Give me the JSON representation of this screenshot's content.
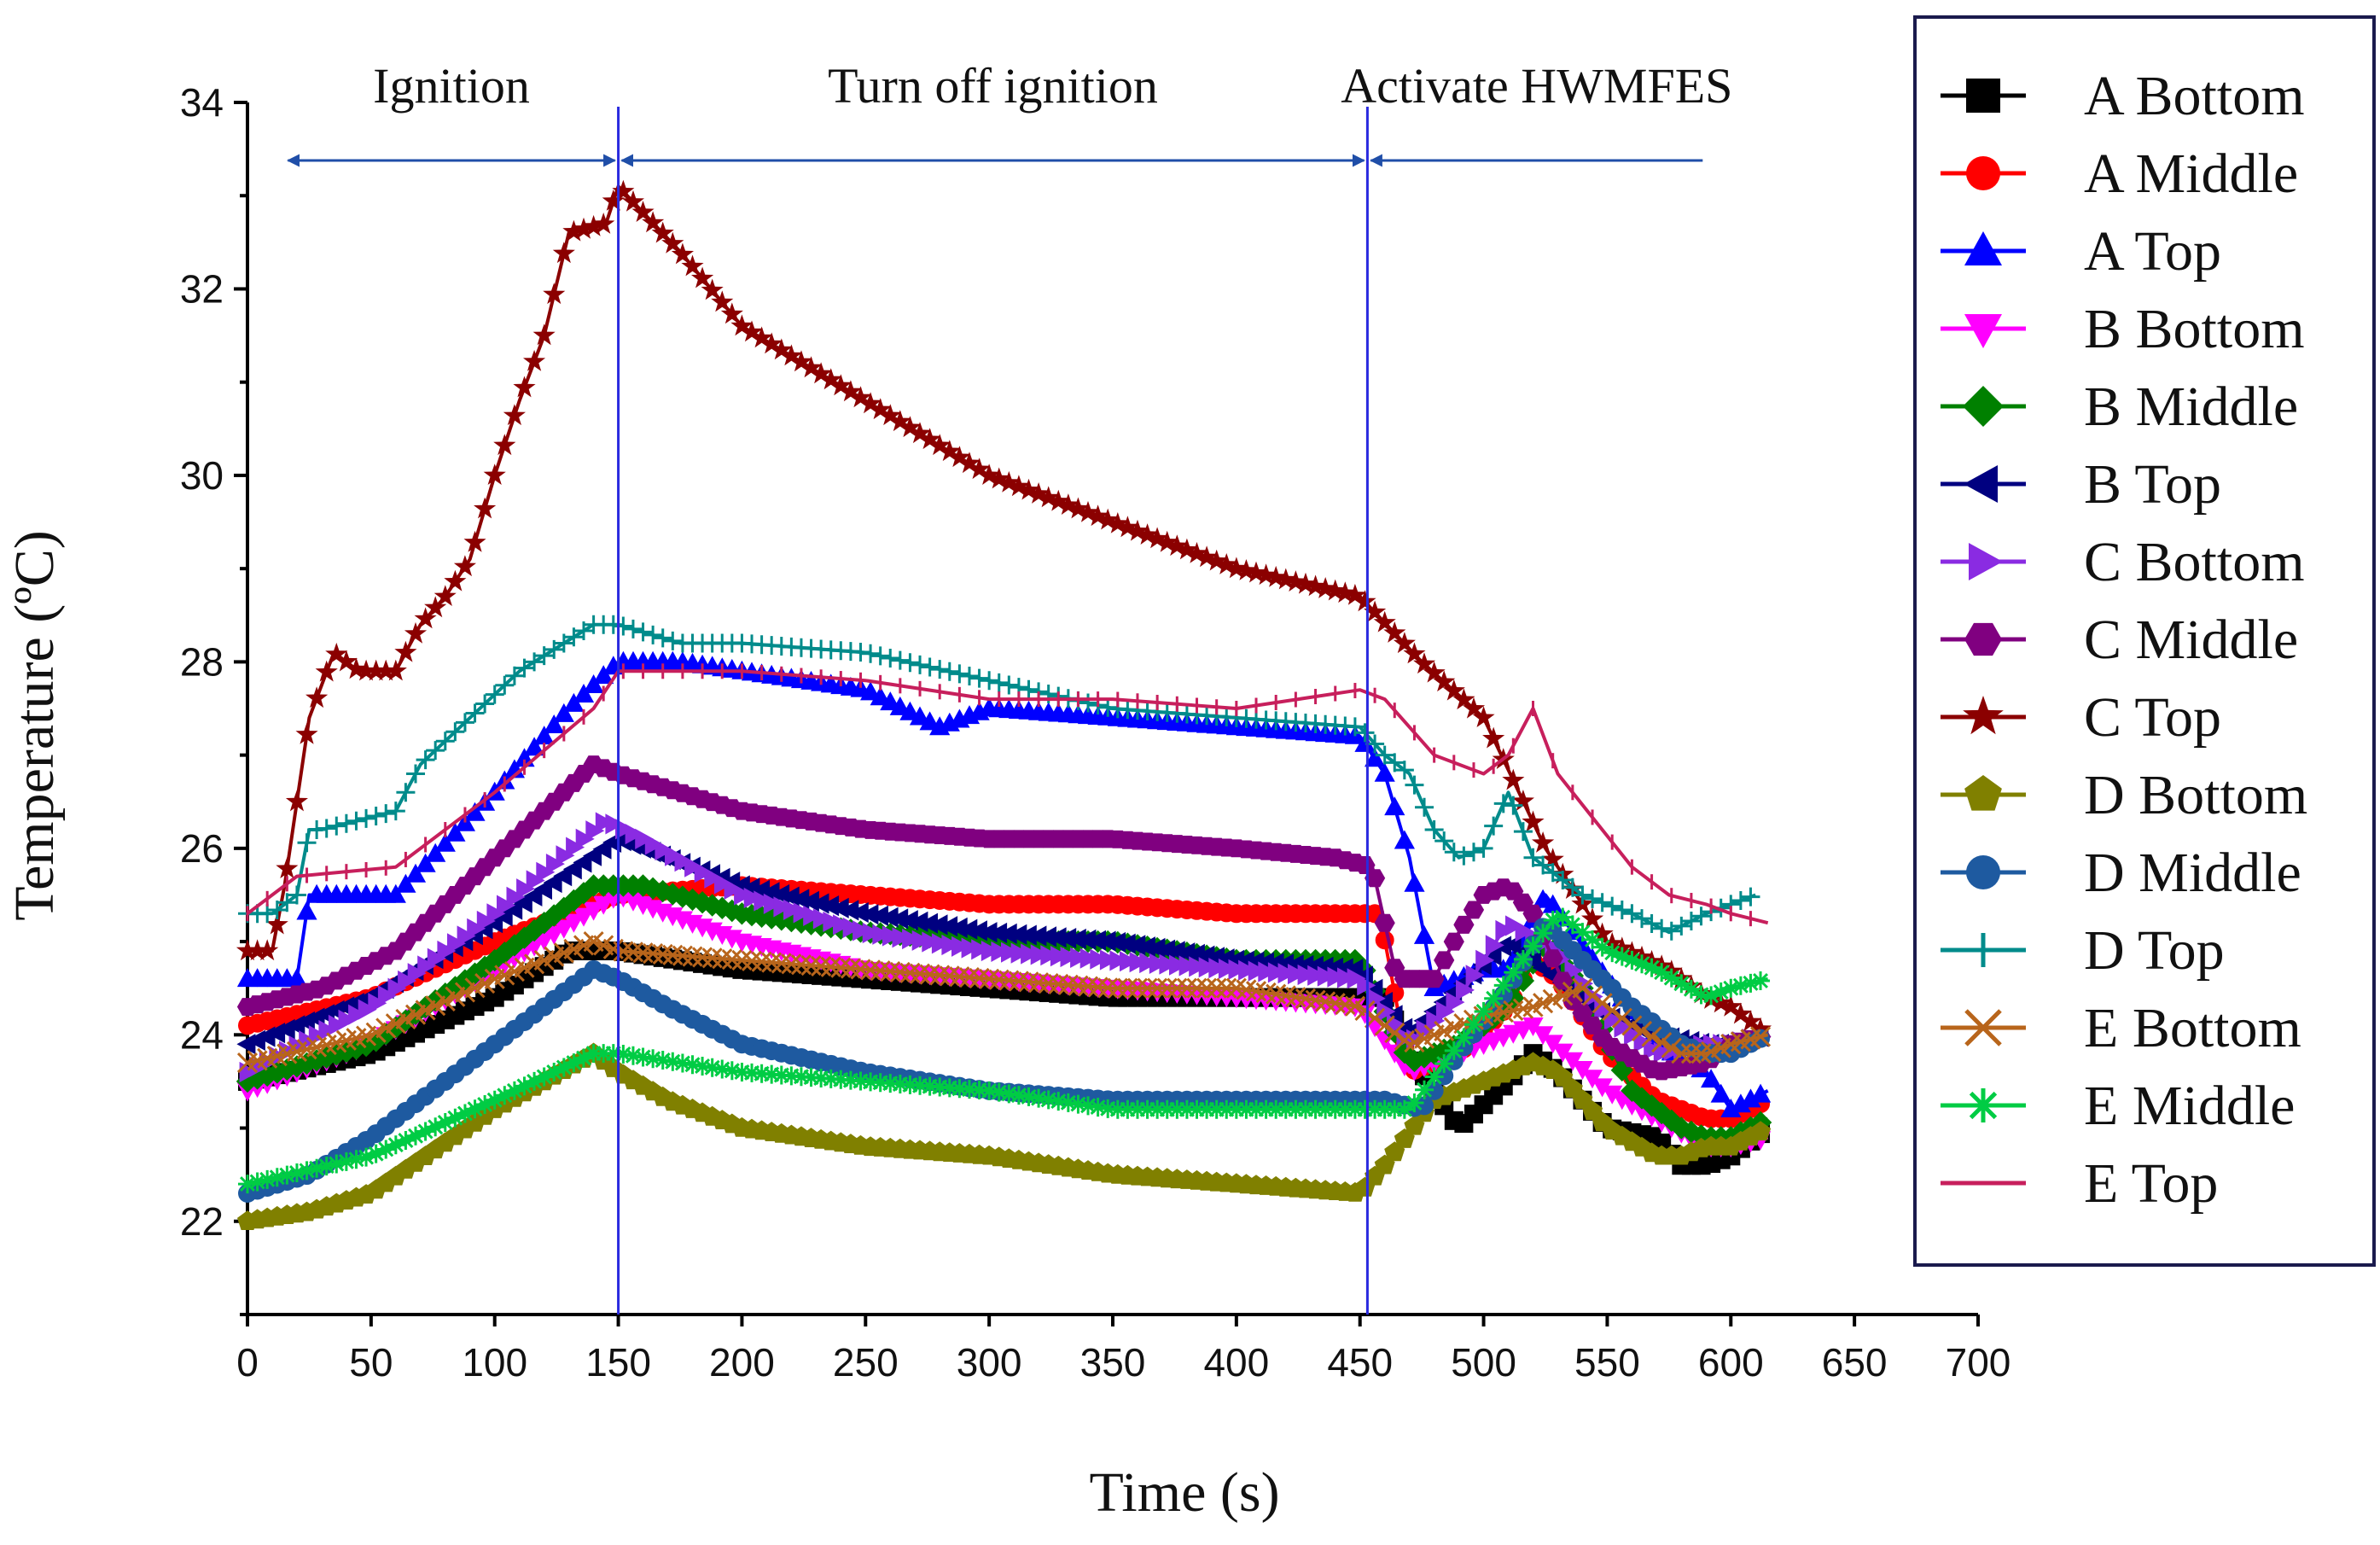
{
  "chart_data": {
    "type": "line",
    "xlabel": "Time (s)",
    "ylabel": "Temperature (ºC)",
    "xlim": [
      0,
      700
    ],
    "ylim": [
      21,
      34
    ],
    "xticks": [
      0,
      50,
      100,
      150,
      200,
      250,
      300,
      350,
      400,
      450,
      500,
      550,
      600,
      650,
      700
    ],
    "yticks": [
      22,
      24,
      26,
      28,
      30,
      32,
      34
    ],
    "grid": false,
    "legend_position": "right",
    "phases": [
      {
        "label": "Ignition",
        "start": 15,
        "end": 150
      },
      {
        "label": "Turn off ignition",
        "start": 150,
        "end": 453
      },
      {
        "label": "Activate HWMFES",
        "start": 453,
        "end": 590
      }
    ],
    "phase_lines": [
      150,
      453
    ],
    "series": [
      {
        "name": "A Bottom",
        "color": "#000000",
        "marker": "square",
        "x": [
          0,
          50,
          100,
          130,
          150,
          200,
          250,
          300,
          350,
          400,
          450,
          460,
          470,
          490,
          510,
          520,
          530,
          550,
          570,
          580,
          590,
          600,
          615
        ],
        "y": [
          23.5,
          23.8,
          24.4,
          24.9,
          24.9,
          24.7,
          24.6,
          24.5,
          24.4,
          24.4,
          24.4,
          24.4,
          23.8,
          23.0,
          23.5,
          23.8,
          23.6,
          23.0,
          22.9,
          22.6,
          22.6,
          22.7,
          23.0
        ]
      },
      {
        "name": "A Middle",
        "color": "#ff0000",
        "marker": "circle",
        "x": [
          0,
          50,
          100,
          150,
          200,
          250,
          300,
          350,
          400,
          450,
          458,
          470,
          490,
          510,
          520,
          530,
          550,
          570,
          590,
          600,
          615
        ],
        "y": [
          24.1,
          24.4,
          25.0,
          25.5,
          25.6,
          25.5,
          25.4,
          25.4,
          25.3,
          25.3,
          25.3,
          23.6,
          23.8,
          24.3,
          24.8,
          24.6,
          23.8,
          23.3,
          23.1,
          23.1,
          23.3
        ]
      },
      {
        "name": "A Top",
        "color": "#0000ff",
        "marker": "triangle-up",
        "x": [
          0,
          20,
          25,
          60,
          100,
          130,
          150,
          175,
          200,
          250,
          280,
          300,
          350,
          400,
          450,
          460,
          470,
          480,
          490,
          500,
          510,
          525,
          550,
          570,
          590,
          600,
          615
        ],
        "y": [
          24.6,
          24.6,
          25.5,
          25.5,
          26.6,
          27.5,
          28.0,
          28.0,
          27.9,
          27.7,
          27.3,
          27.5,
          27.4,
          27.3,
          27.2,
          26.8,
          25.9,
          24.5,
          24.6,
          24.7,
          24.7,
          25.5,
          24.6,
          23.9,
          23.6,
          23.2,
          23.4
        ]
      },
      {
        "name": "B Bottom",
        "color": "#ff00ff",
        "marker": "triangle-down",
        "x": [
          0,
          50,
          100,
          150,
          200,
          250,
          300,
          350,
          400,
          450,
          470,
          500,
          520,
          550,
          570,
          590,
          600,
          615
        ],
        "y": [
          23.4,
          23.9,
          24.7,
          25.5,
          25.0,
          24.7,
          24.6,
          24.5,
          24.4,
          24.3,
          23.6,
          23.9,
          24.1,
          23.4,
          23.1,
          22.8,
          22.8,
          22.9
        ]
      },
      {
        "name": "B Middle",
        "color": "#008000",
        "marker": "diamond",
        "x": [
          0,
          50,
          100,
          140,
          160,
          200,
          250,
          300,
          350,
          400,
          450,
          470,
          490,
          510,
          525,
          540,
          560,
          580,
          590,
          600,
          615
        ],
        "y": [
          23.5,
          23.9,
          24.8,
          25.6,
          25.6,
          25.3,
          25.1,
          25.0,
          25.0,
          24.8,
          24.8,
          23.7,
          23.9,
          24.3,
          25.0,
          24.5,
          23.4,
          23.0,
          22.9,
          22.9,
          23.1
        ]
      },
      {
        "name": "B Top",
        "color": "#000080",
        "marker": "triangle-left",
        "x": [
          0,
          50,
          100,
          150,
          200,
          250,
          300,
          350,
          400,
          450,
          470,
          490,
          510,
          530,
          550,
          570,
          590,
          600,
          615
        ],
        "y": [
          23.9,
          24.4,
          25.2,
          26.1,
          25.6,
          25.3,
          25.1,
          25.0,
          24.8,
          24.7,
          24.0,
          24.5,
          25.0,
          24.6,
          24.2,
          24.0,
          23.9,
          23.9,
          24.0
        ]
      },
      {
        "name": "C Bottom",
        "color": "#8a2be2",
        "marker": "triangle-right",
        "x": [
          0,
          50,
          100,
          145,
          160,
          200,
          250,
          300,
          350,
          400,
          450,
          470,
          490,
          510,
          530,
          550,
          570,
          590,
          600,
          615
        ],
        "y": [
          23.6,
          24.3,
          25.3,
          26.3,
          26.1,
          25.5,
          25.1,
          24.9,
          24.8,
          24.7,
          24.6,
          23.9,
          24.4,
          25.2,
          24.9,
          24.2,
          23.8,
          23.9,
          23.9,
          24.0
        ]
      },
      {
        "name": "C Middle",
        "color": "#800080",
        "marker": "hexagon",
        "x": [
          0,
          30,
          60,
          100,
          140,
          150,
          175,
          200,
          250,
          300,
          350,
          400,
          440,
          455,
          465,
          480,
          490,
          500,
          510,
          520,
          535,
          550,
          570,
          590,
          600,
          615
        ],
        "y": [
          24.3,
          24.5,
          24.9,
          25.9,
          26.9,
          26.8,
          26.6,
          26.4,
          26.2,
          26.1,
          26.1,
          26.0,
          25.9,
          25.8,
          24.6,
          24.6,
          25.1,
          25.5,
          25.6,
          25.3,
          24.4,
          23.9,
          23.6,
          23.7,
          23.9,
          24.0
        ]
      },
      {
        "name": "C Top",
        "color": "#8b0000",
        "marker": "star",
        "x": [
          0,
          10,
          15,
          25,
          35,
          45,
          60,
          70,
          80,
          90,
          100,
          110,
          120,
          130,
          145,
          150,
          175,
          200,
          250,
          300,
          350,
          400,
          450,
          475,
          500,
          525,
          550,
          575,
          590,
          600,
          615
        ],
        "y": [
          24.9,
          24.9,
          25.6,
          27.4,
          28.1,
          27.9,
          27.9,
          28.4,
          28.7,
          29.1,
          30.0,
          30.8,
          31.5,
          32.6,
          32.7,
          33.1,
          32.4,
          31.6,
          30.8,
          30.0,
          29.5,
          29.0,
          28.7,
          28.0,
          27.4,
          26.0,
          25.0,
          24.7,
          24.4,
          24.3,
          24.0
        ]
      },
      {
        "name": "D Bottom",
        "color": "#808000",
        "marker": "pentagon",
        "x": [
          0,
          25,
          50,
          100,
          140,
          150,
          170,
          200,
          250,
          300,
          350,
          400,
          450,
          460,
          480,
          500,
          520,
          530,
          550,
          570,
          580,
          590,
          600,
          615
        ],
        "y": [
          22.0,
          22.1,
          22.3,
          23.2,
          23.8,
          23.6,
          23.3,
          23.0,
          22.8,
          22.7,
          22.5,
          22.4,
          22.3,
          22.6,
          23.3,
          23.5,
          23.7,
          23.6,
          23.0,
          22.7,
          22.7,
          22.8,
          22.8,
          23.0
        ]
      },
      {
        "name": "D Middle",
        "color": "#1e5aa0",
        "marker": "circle",
        "x": [
          0,
          25,
          50,
          100,
          140,
          150,
          170,
          200,
          250,
          300,
          350,
          400,
          450,
          460,
          475,
          490,
          510,
          525,
          540,
          560,
          580,
          590,
          600,
          615
        ],
        "y": [
          22.3,
          22.5,
          22.9,
          23.9,
          24.7,
          24.6,
          24.3,
          23.9,
          23.6,
          23.4,
          23.3,
          23.3,
          23.3,
          23.3,
          23.2,
          23.8,
          24.5,
          25.2,
          24.8,
          24.3,
          23.9,
          23.8,
          23.8,
          24.0
        ]
      },
      {
        "name": "D Top",
        "color": "#008b8b",
        "marker": "plus",
        "x": [
          0,
          10,
          20,
          25,
          30,
          60,
          70,
          90,
          110,
          140,
          150,
          175,
          200,
          250,
          300,
          350,
          400,
          450,
          460,
          470,
          480,
          490,
          500,
          510,
          520,
          540,
          560,
          575,
          590,
          600,
          610
        ],
        "y": [
          25.3,
          25.3,
          25.5,
          26.2,
          26.2,
          26.4,
          26.9,
          27.4,
          27.9,
          28.4,
          28.4,
          28.2,
          28.2,
          28.1,
          27.8,
          27.5,
          27.4,
          27.3,
          27.0,
          26.8,
          26.2,
          25.9,
          26.0,
          26.6,
          25.9,
          25.5,
          25.3,
          25.1,
          25.3,
          25.4,
          25.5
        ]
      },
      {
        "name": "E Bottom",
        "color": "#b8651b",
        "marker": "x",
        "x": [
          0,
          50,
          100,
          140,
          150,
          200,
          250,
          300,
          350,
          400,
          450,
          470,
          500,
          520,
          540,
          560,
          580,
          590,
          600,
          615
        ],
        "y": [
          23.7,
          24.0,
          24.6,
          25.0,
          24.9,
          24.8,
          24.7,
          24.6,
          24.5,
          24.5,
          24.3,
          23.9,
          24.2,
          24.3,
          24.5,
          24.1,
          23.8,
          23.8,
          23.9,
          24.0
        ]
      },
      {
        "name": "E Middle",
        "color": "#00cc44",
        "marker": "asterisk",
        "x": [
          0,
          50,
          100,
          140,
          150,
          200,
          250,
          300,
          350,
          400,
          450,
          470,
          490,
          510,
          530,
          550,
          570,
          590,
          600,
          615
        ],
        "y": [
          22.4,
          22.7,
          23.3,
          23.8,
          23.8,
          23.6,
          23.5,
          23.4,
          23.2,
          23.2,
          23.2,
          23.2,
          23.9,
          24.6,
          25.3,
          24.9,
          24.7,
          24.4,
          24.5,
          24.6
        ]
      },
      {
        "name": "E Top",
        "color": "#c71f5c",
        "marker": "line",
        "x": [
          0,
          20,
          60,
          100,
          140,
          150,
          175,
          200,
          250,
          300,
          350,
          400,
          450,
          460,
          470,
          480,
          500,
          510,
          520,
          530,
          545,
          560,
          575,
          590,
          600,
          615
        ],
        "y": [
          25.3,
          25.7,
          25.8,
          26.6,
          27.5,
          27.9,
          27.9,
          27.9,
          27.8,
          27.6,
          27.6,
          27.5,
          27.7,
          27.6,
          27.3,
          27.0,
          26.8,
          27.0,
          27.5,
          26.8,
          26.3,
          25.8,
          25.5,
          25.4,
          25.3,
          25.2
        ]
      }
    ]
  }
}
